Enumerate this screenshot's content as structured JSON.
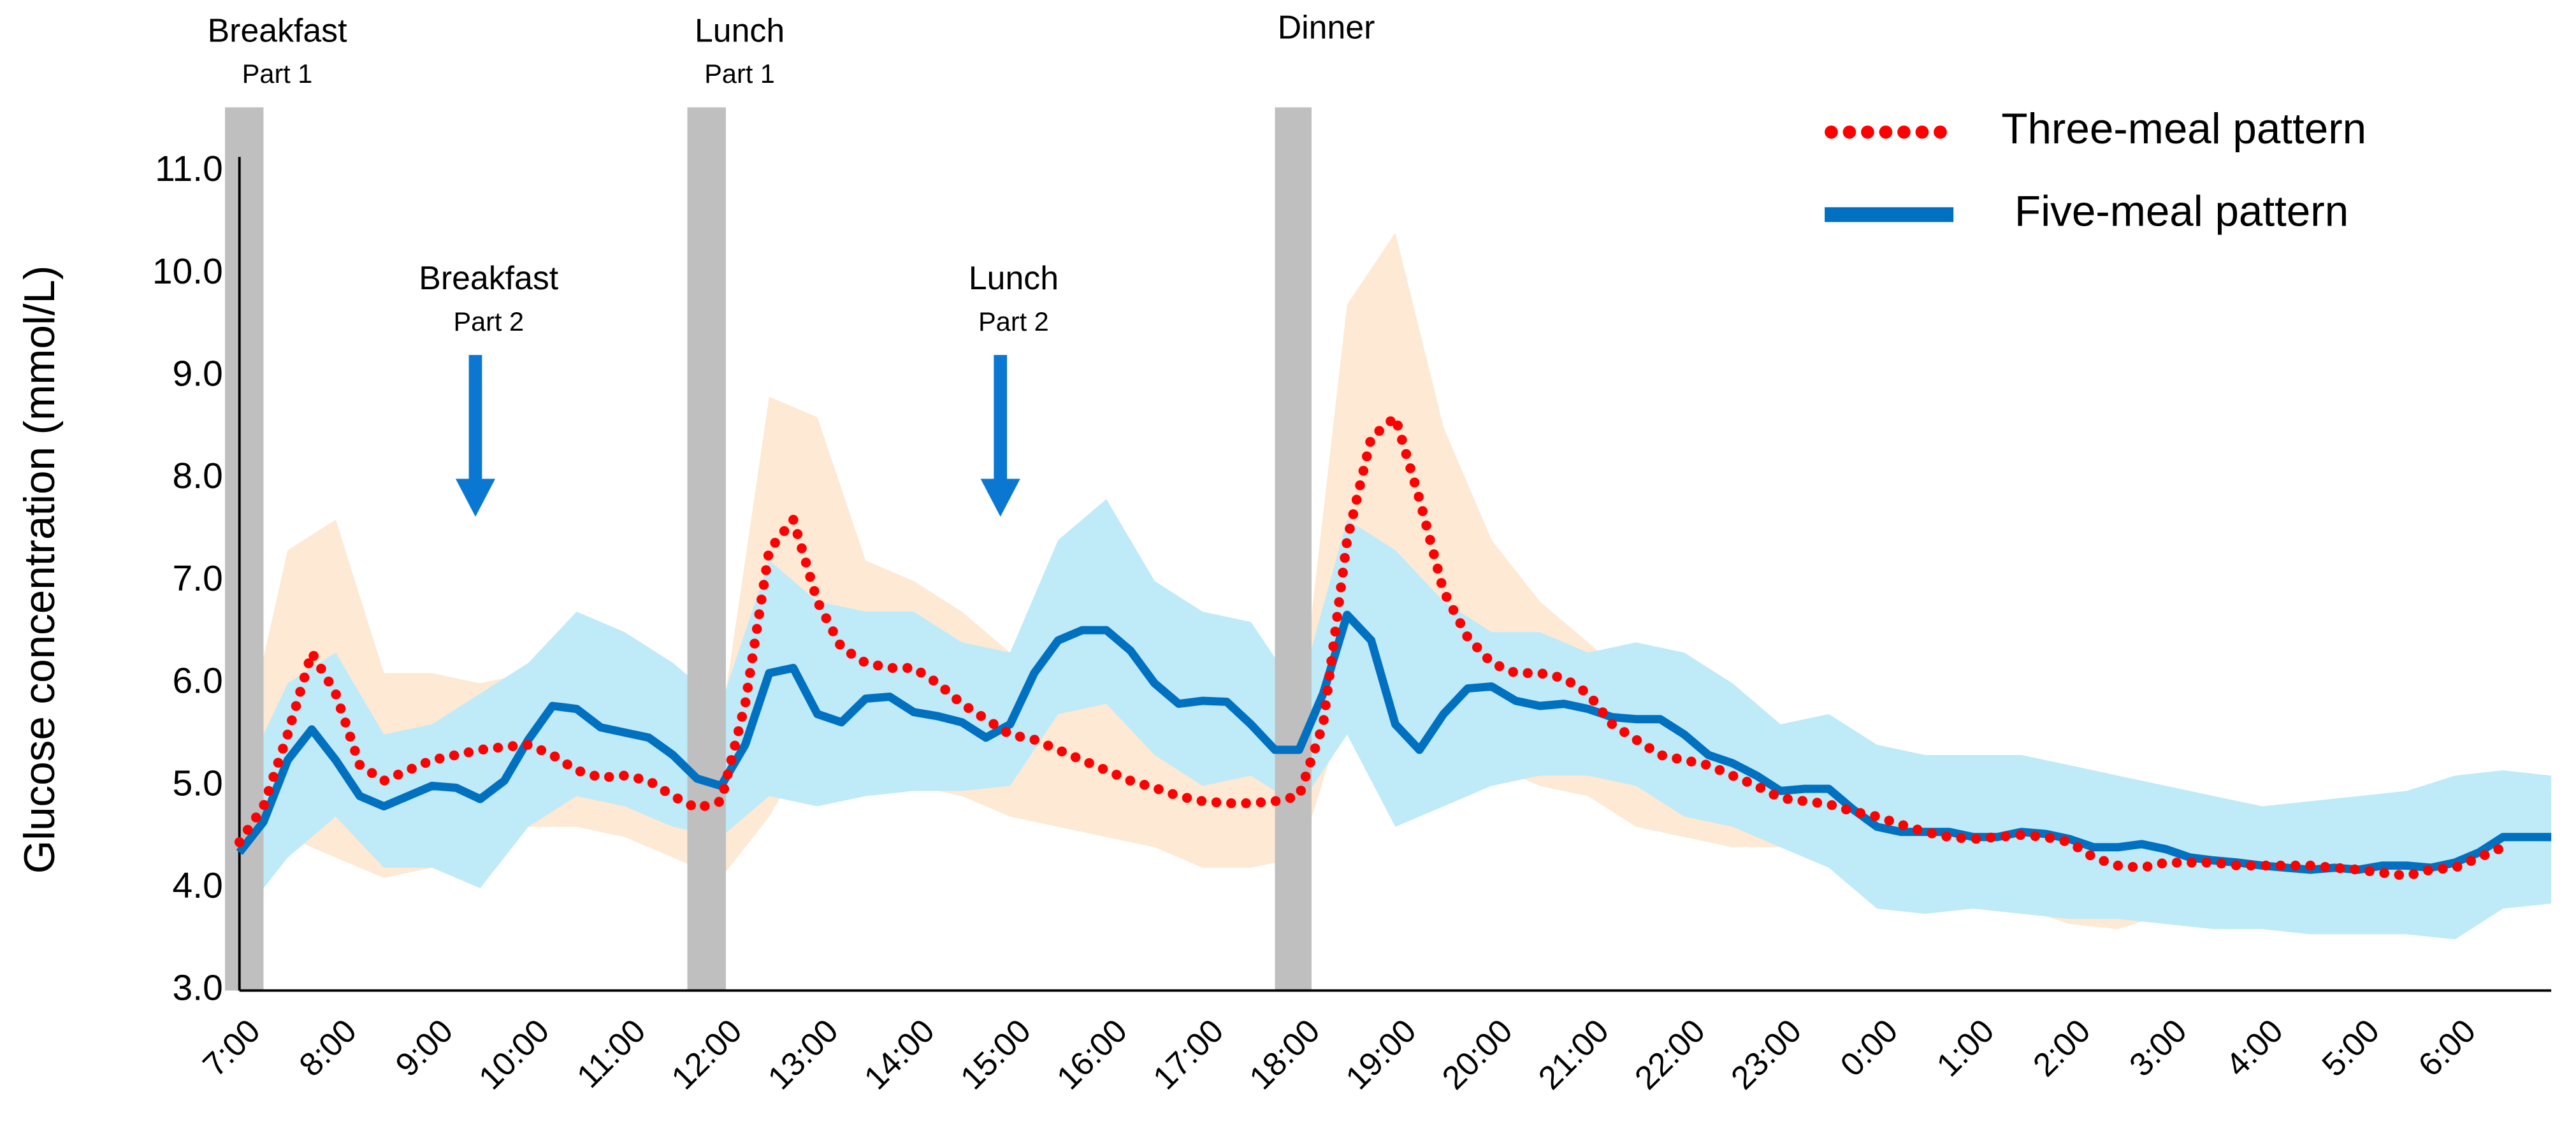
{
  "chart_data": {
    "type": "line",
    "y_label": "Glucose concentration (mmol/L)",
    "ylim": [
      3,
      11.6
    ],
    "yticks": [
      {
        "value": 3,
        "label": "3.0"
      },
      {
        "value": 4,
        "label": "4.0"
      },
      {
        "value": 5,
        "label": "5.0"
      },
      {
        "value": 6,
        "label": "6.0"
      },
      {
        "value": 7,
        "label": "7.0"
      },
      {
        "value": 8,
        "label": "8.0"
      },
      {
        "value": 9,
        "label": "9.0"
      },
      {
        "value": 10,
        "label": "10.0"
      },
      {
        "value": 11,
        "label": "11.0"
      }
    ],
    "xlim": [
      7,
      31
    ],
    "xticks": [
      {
        "value": 7,
        "label": "7:00"
      },
      {
        "value": 8,
        "label": "8:00"
      },
      {
        "value": 9,
        "label": "9:00"
      },
      {
        "value": 10,
        "label": "10:00"
      },
      {
        "value": 11,
        "label": "11:00"
      },
      {
        "value": 12,
        "label": "12:00"
      },
      {
        "value": 13,
        "label": "13:00"
      },
      {
        "value": 14,
        "label": "14:00"
      },
      {
        "value": 15,
        "label": "15:00"
      },
      {
        "value": 16,
        "label": "16:00"
      },
      {
        "value": 17,
        "label": "17:00"
      },
      {
        "value": 18,
        "label": "18:00"
      },
      {
        "value": 19,
        "label": "19:00"
      },
      {
        "value": 20,
        "label": "20:00"
      },
      {
        "value": 21,
        "label": "21:00"
      },
      {
        "value": 22,
        "label": "22:00"
      },
      {
        "value": 23,
        "label": "23:00"
      },
      {
        "value": 24,
        "label": "0:00"
      },
      {
        "value": 25,
        "label": "1:00"
      },
      {
        "value": 26,
        "label": "2:00"
      },
      {
        "value": 27,
        "label": "3:00"
      },
      {
        "value": 28,
        "label": "4:00"
      },
      {
        "value": 29,
        "label": "5:00"
      },
      {
        "value": 30,
        "label": "6:00"
      }
    ],
    "legend": "upper right",
    "x": [
      7,
      7.25,
      7.5,
      7.75,
      8,
      8.25,
      8.5,
      8.75,
      9,
      9.25,
      9.5,
      9.75,
      10,
      10.25,
      10.5,
      10.75,
      11,
      11.25,
      11.5,
      11.75,
      12,
      12.25,
      12.5,
      12.75,
      13,
      13.25,
      13.5,
      13.75,
      14,
      14.25,
      14.5,
      14.75,
      15,
      15.25,
      15.5,
      15.75,
      16,
      16.25,
      16.5,
      16.75,
      17,
      17.25,
      17.5,
      17.75,
      18,
      18.25,
      18.5,
      18.75,
      19,
      19.25,
      19.5,
      19.75,
      20,
      20.25,
      20.5,
      20.75,
      21,
      21.25,
      21.5,
      21.75,
      22,
      22.25,
      22.5,
      22.75,
      23,
      23.25,
      23.5,
      23.75,
      24,
      24.25,
      24.5,
      24.75,
      25,
      25.25,
      25.5,
      25.75,
      26,
      26.25,
      26.5,
      26.75,
      27,
      27.25,
      27.5,
      27.75,
      28,
      28.25,
      28.5,
      28.75,
      29,
      29.25,
      29.5,
      29.75,
      30,
      30.25,
      30.5,
      30.75,
      31
    ],
    "series": [
      {
        "name": "Three-meal pattern",
        "color": "#ff0000",
        "style": "dotted",
        "values": [
          4.45,
          4.8,
          5.5,
          6.3,
          5.9,
          5.2,
          5.05,
          5.15,
          5.25,
          5.3,
          5.35,
          5.38,
          5.4,
          5.3,
          5.15,
          5.08,
          5.1,
          5.05,
          4.9,
          4.78,
          4.85,
          5.8,
          7.3,
          7.6,
          6.8,
          6.35,
          6.2,
          6.15,
          6.15,
          6.0,
          5.8,
          5.65,
          5.5,
          5.45,
          5.35,
          5.25,
          5.15,
          5.05,
          4.98,
          4.9,
          4.85,
          4.83,
          4.83,
          4.85,
          4.9,
          5.6,
          7.4,
          8.4,
          8.6,
          7.8,
          6.9,
          6.45,
          6.2,
          6.1,
          6.1,
          6.05,
          5.9,
          5.6,
          5.45,
          5.3,
          5.25,
          5.2,
          5.1,
          5.0,
          4.88,
          4.85,
          4.82,
          4.75,
          4.7,
          4.62,
          4.55,
          4.5,
          4.48,
          4.5,
          4.52,
          4.5,
          4.45,
          4.3,
          4.22,
          4.2,
          4.25,
          4.25,
          4.25,
          4.22,
          4.22,
          4.22,
          4.22,
          4.2,
          4.18,
          4.15,
          4.12,
          4.18,
          4.2,
          4.3,
          4.4,
          null,
          null
        ]
      },
      {
        "name": "Five-meal pattern",
        "color": "#0070c0",
        "style": "solid",
        "values": [
          4.35,
          4.65,
          5.25,
          5.55,
          5.25,
          4.9,
          4.8,
          4.9,
          5.0,
          4.98,
          4.87,
          5.05,
          5.45,
          5.78,
          5.75,
          5.57,
          5.52,
          5.47,
          5.3,
          5.07,
          5.0,
          5.4,
          6.1,
          6.15,
          5.7,
          5.62,
          5.85,
          5.87,
          5.72,
          5.68,
          5.62,
          5.47,
          5.6,
          6.1,
          6.42,
          6.52,
          6.52,
          6.32,
          6.0,
          5.8,
          5.83,
          5.82,
          5.6,
          5.35,
          5.35,
          5.9,
          6.67,
          6.42,
          5.6,
          5.35,
          5.7,
          5.95,
          5.97,
          5.83,
          5.78,
          5.8,
          5.75,
          5.67,
          5.65,
          5.65,
          5.5,
          5.3,
          5.22,
          5.1,
          4.95,
          4.97,
          4.97,
          4.77,
          4.6,
          4.55,
          4.55,
          4.55,
          4.5,
          4.5,
          4.55,
          4.53,
          4.48,
          4.4,
          4.4,
          4.43,
          4.38,
          4.3,
          4.27,
          4.25,
          4.22,
          4.2,
          4.18,
          4.2,
          4.18,
          4.22,
          4.22,
          4.2,
          4.25,
          4.35,
          4.5,
          4.5,
          4.5
        ]
      }
    ],
    "bands": [
      {
        "color": "#fde9d4",
        "x": [
          7,
          7.5,
          8,
          8.5,
          9,
          9.5,
          10,
          10.5,
          11,
          11.5,
          12,
          12.5,
          13,
          13.5,
          14,
          14.5,
          15,
          15.5,
          16,
          16.5,
          17,
          17.5,
          18,
          18.5,
          19,
          19.5,
          20,
          20.5,
          21,
          21.5,
          22,
          22.5,
          23,
          23.5,
          24,
          24.5,
          25,
          25.5,
          26,
          26.5,
          27,
          27.5,
          28,
          28.5,
          29,
          29.5,
          30,
          30.5,
          31
        ],
        "lower": [
          3.8,
          4.5,
          4.3,
          4.1,
          4.2,
          4.4,
          4.6,
          4.6,
          4.5,
          4.3,
          4.1,
          4.7,
          5.5,
          5.2,
          5.0,
          4.9,
          4.7,
          4.6,
          4.5,
          4.4,
          4.2,
          4.2,
          4.3,
          5.8,
          6.3,
          5.4,
          5.2,
          5.0,
          4.9,
          4.6,
          4.5,
          4.4,
          4.4,
          4.4,
          4.0,
          3.9,
          3.85,
          3.8,
          3.65,
          3.6,
          3.75,
          3.8,
          3.8,
          3.8,
          3.75,
          3.75,
          3.7,
          3.8,
          3.9
        ],
        "upper": [
          5.2,
          7.3,
          7.6,
          6.1,
          6.1,
          6.0,
          6.1,
          5.8,
          5.7,
          5.6,
          5.6,
          8.8,
          8.6,
          7.2,
          7.0,
          6.7,
          6.3,
          6.0,
          5.8,
          5.6,
          5.5,
          5.5,
          5.6,
          9.7,
          10.4,
          8.5,
          7.4,
          6.8,
          6.4,
          6.0,
          5.7,
          5.6,
          5.3,
          5.2,
          5.0,
          4.9,
          4.9,
          5.0,
          5.0,
          4.9,
          4.6,
          4.5,
          4.5,
          4.6,
          4.6,
          4.5,
          4.6,
          4.9,
          4.9
        ]
      },
      {
        "color": "#bfeaf8",
        "x": [
          7,
          7.5,
          8,
          8.5,
          9,
          9.5,
          10,
          10.5,
          11,
          11.5,
          12,
          12.5,
          13,
          13.5,
          14,
          14.5,
          15,
          15.5,
          16,
          16.5,
          17,
          17.5,
          18,
          18.5,
          19,
          19.5,
          20,
          20.5,
          21,
          21.5,
          22,
          22.5,
          23,
          23.5,
          24,
          24.5,
          25,
          25.5,
          26,
          26.5,
          27,
          27.5,
          28,
          28.5,
          29,
          29.5,
          30,
          30.5,
          31
        ],
        "lower": [
          3.7,
          4.3,
          4.7,
          4.2,
          4.2,
          4.0,
          4.6,
          4.9,
          4.8,
          4.6,
          4.5,
          4.9,
          4.8,
          4.9,
          4.95,
          4.95,
          5.0,
          5.7,
          5.8,
          5.3,
          5.0,
          5.1,
          4.8,
          5.5,
          4.6,
          4.8,
          5.0,
          5.1,
          5.1,
          5.0,
          4.7,
          4.6,
          4.4,
          4.2,
          3.8,
          3.75,
          3.8,
          3.75,
          3.7,
          3.7,
          3.65,
          3.6,
          3.6,
          3.55,
          3.55,
          3.55,
          3.5,
          3.8,
          3.85
        ],
        "upper": [
          5.0,
          6.0,
          6.3,
          5.5,
          5.6,
          5.9,
          6.2,
          6.7,
          6.5,
          6.2,
          5.8,
          7.2,
          6.8,
          6.7,
          6.7,
          6.4,
          6.3,
          7.4,
          7.8,
          7.0,
          6.7,
          6.6,
          5.9,
          7.6,
          7.3,
          6.8,
          6.5,
          6.5,
          6.3,
          6.4,
          6.3,
          6.0,
          5.6,
          5.7,
          5.4,
          5.3,
          5.3,
          5.3,
          5.2,
          5.1,
          5.0,
          4.9,
          4.8,
          4.85,
          4.9,
          4.95,
          5.1,
          5.15,
          5.1
        ]
      }
    ],
    "meals": [
      {
        "label": "Breakfast",
        "sublabel": "Part 1",
        "x": [
          6.85,
          7.25
        ]
      },
      {
        "label": "Lunch",
        "sublabel": "Part 1",
        "x": [
          11.65,
          12.05
        ]
      },
      {
        "label": "Dinner",
        "x": [
          17.75,
          18.13
        ]
      }
    ],
    "arrows": [
      {
        "label": "Breakfast",
        "sublabel": "Part 2",
        "x": 9.45
      },
      {
        "label": "Lunch",
        "sublabel": "Part 2",
        "x": 14.9
      }
    ]
  }
}
